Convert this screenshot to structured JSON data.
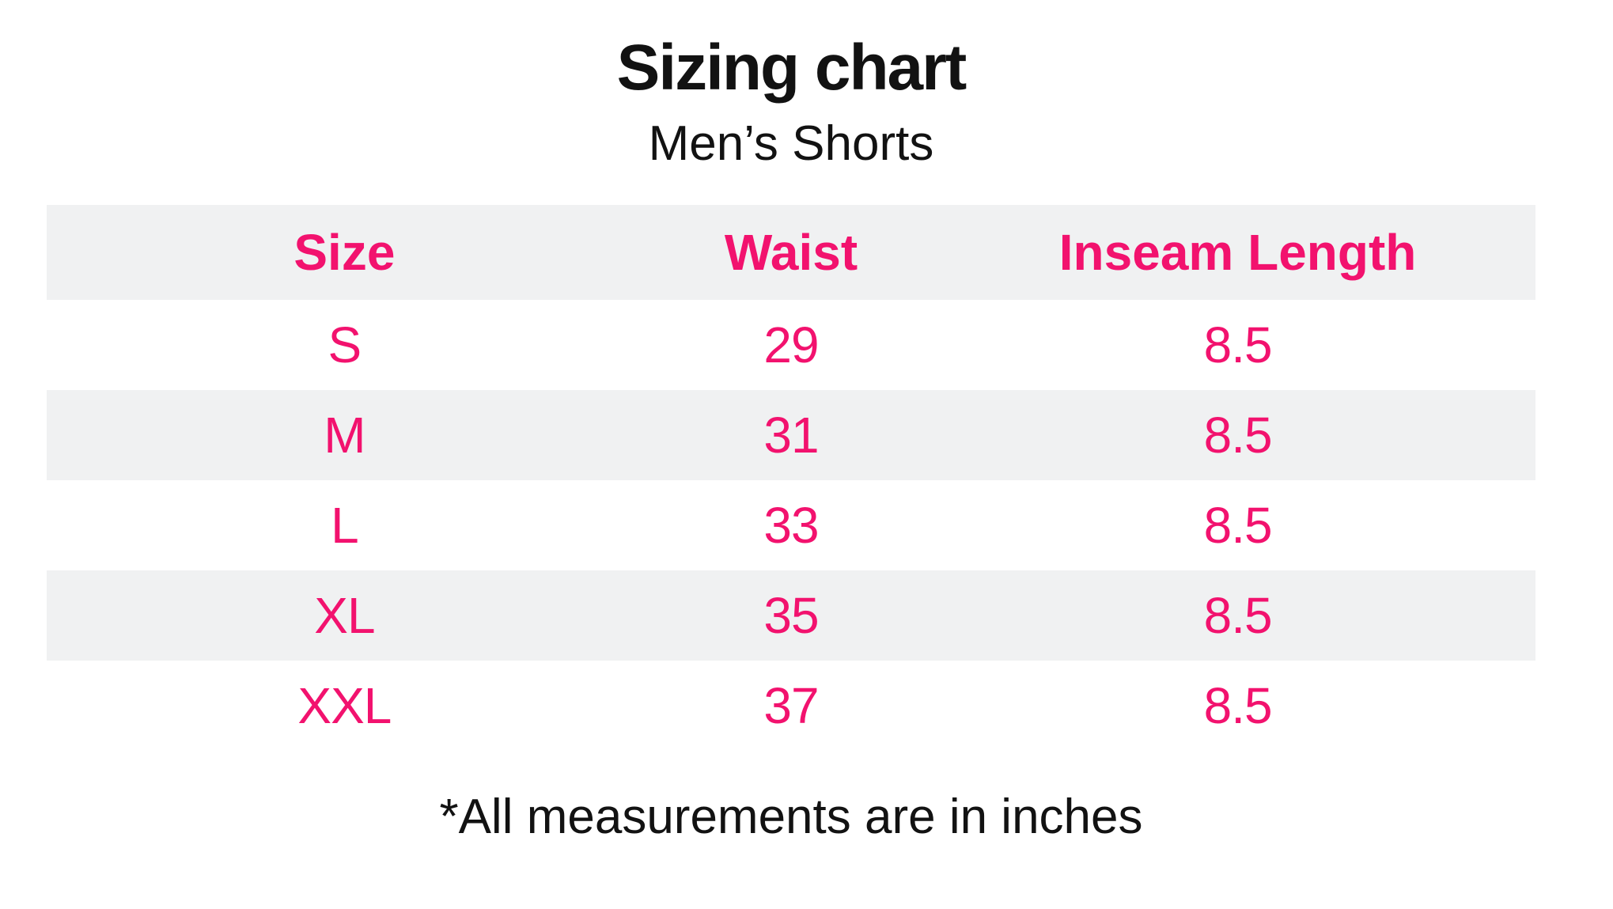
{
  "page": {
    "title": "Sizing chart",
    "subtitle": "Men’s Shorts",
    "footnote": "*All measurements are in inches"
  },
  "colors": {
    "accent": "#F2126E",
    "row_stripe": "#F0F1F2",
    "ink": "#121212",
    "page_bg": "#FFFFFF"
  },
  "table": {
    "headers": {
      "size": "Size",
      "waist": "Waist",
      "inseam": "Inseam Length"
    },
    "rows": [
      {
        "size": "S",
        "waist": "29",
        "inseam": "8.5"
      },
      {
        "size": "M",
        "waist": "31",
        "inseam": "8.5"
      },
      {
        "size": "L",
        "waist": "33",
        "inseam": "8.5"
      },
      {
        "size": "XL",
        "waist": "35",
        "inseam": "8.5"
      },
      {
        "size": "XXL",
        "waist": "37",
        "inseam": "8.5"
      }
    ]
  },
  "chart_data": {
    "type": "table",
    "title": "Sizing chart",
    "subtitle": "Men’s Shorts",
    "columns": [
      "Size",
      "Waist",
      "Inseam Length"
    ],
    "rows": [
      [
        "S",
        29,
        8.5
      ],
      [
        "M",
        31,
        8.5
      ],
      [
        "L",
        33,
        8.5
      ],
      [
        "XL",
        35,
        8.5
      ],
      [
        "XXL",
        37,
        8.5
      ]
    ],
    "units": "inches",
    "footnote": "*All measurements are in inches",
    "layout_hints": {
      "column_widths_pct": [
        40,
        20,
        40
      ],
      "striped_rows": [
        "header",
        "M",
        "XL"
      ],
      "text_alignment": "center"
    }
  }
}
